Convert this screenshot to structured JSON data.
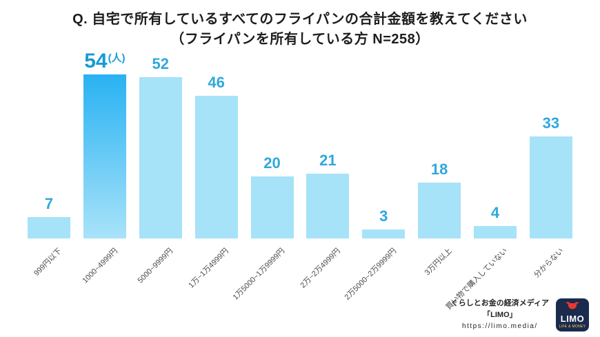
{
  "title": {
    "line1": "Q. 自宅で所有しているすべてのフライパンの合計金額を教えてください",
    "line2": "（フライパンを所有している方 N=258）"
  },
  "chart_data": {
    "type": "bar",
    "title": "自宅で所有しているすべてのフライパンの合計金額（フライパンを所有している方 N=258）",
    "unit": "(人)",
    "categories": [
      "999円以下",
      "1000~4999円",
      "5000~9999円",
      "1万~1万4999円",
      "1万5000~1万9999円",
      "2万~2万4999円",
      "2万5000~2万9999円",
      "3万円以上",
      "買い物で購入していない",
      "分からない"
    ],
    "values": [
      7,
      54,
      52,
      46,
      20,
      21,
      3,
      18,
      4,
      33
    ],
    "highlight_index": 1,
    "ylim": [
      0,
      54
    ],
    "grid": false,
    "legend": "none",
    "colors": {
      "bar": "#a6e2f8",
      "bar_highlight_top": "#28b2f2",
      "bar_highlight_bottom": "#a9e3f9",
      "value_label": "#2fa8dc",
      "value_label_highlight": "#189bd6"
    }
  },
  "footer": {
    "line1": "くらしとお金の経済メディア",
    "line2": "「LIMO」",
    "url": "https://limo.media/",
    "logo_text": "LIMO",
    "logo_subtext": "LIFE & MONEY"
  }
}
